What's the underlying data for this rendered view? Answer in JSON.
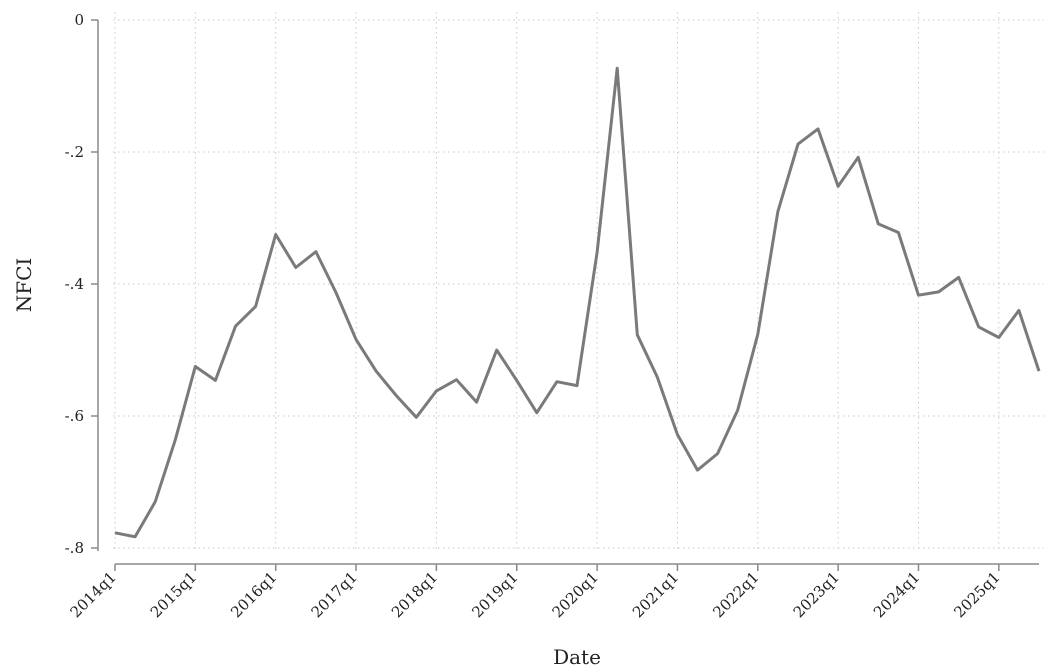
{
  "chart_data": {
    "type": "line",
    "title": "",
    "xlabel": "Date",
    "ylabel": "NFCI",
    "ylim": [
      -0.8,
      0
    ],
    "yticks": [
      0,
      -0.2,
      -0.4,
      -0.6,
      -0.8
    ],
    "ytick_labels": [
      "0",
      "-.2",
      "-.4",
      "-.6",
      "-.8"
    ],
    "xticks": [
      "2014q1",
      "2015q1",
      "2016q1",
      "2017q1",
      "2018q1",
      "2019q1",
      "2020q1",
      "2021q1",
      "2022q1",
      "2023q1",
      "2024q1",
      "2025q1"
    ],
    "grid": true,
    "line_color": "#7a7a7a",
    "x": [
      "2014q1",
      "2014q2",
      "2014q3",
      "2014q4",
      "2015q1",
      "2015q2",
      "2015q3",
      "2015q4",
      "2016q1",
      "2016q2",
      "2016q3",
      "2016q4",
      "2017q1",
      "2017q2",
      "2017q3",
      "2017q4",
      "2018q1",
      "2018q2",
      "2018q3",
      "2018q4",
      "2019q1",
      "2019q2",
      "2019q3",
      "2019q4",
      "2020q1",
      "2020q2",
      "2020q3",
      "2020q4",
      "2021q1",
      "2021q2",
      "2021q3",
      "2021q4",
      "2022q1",
      "2022q2",
      "2022q3",
      "2022q4",
      "2023q1",
      "2023q2",
      "2023q3",
      "2023q4",
      "2024q1",
      "2024q2",
      "2024q3",
      "2024q4",
      "2025q1",
      "2025q2",
      "2025q3"
    ],
    "values": [
      -0.777,
      -0.783,
      -0.73,
      -0.636,
      -0.525,
      -0.546,
      -0.464,
      -0.434,
      -0.325,
      -0.375,
      -0.351,
      -0.413,
      -0.484,
      -0.532,
      -0.569,
      -0.602,
      -0.562,
      -0.545,
      -0.579,
      -0.5,
      -0.546,
      -0.595,
      -0.548,
      -0.554,
      -0.352,
      -0.073,
      -0.477,
      -0.541,
      -0.628,
      -0.682,
      -0.657,
      -0.591,
      -0.476,
      -0.29,
      -0.188,
      -0.165,
      -0.252,
      -0.208,
      -0.309,
      -0.322,
      -0.417,
      -0.412,
      -0.39,
      -0.465,
      -0.481,
      -0.44,
      -0.532
    ]
  }
}
